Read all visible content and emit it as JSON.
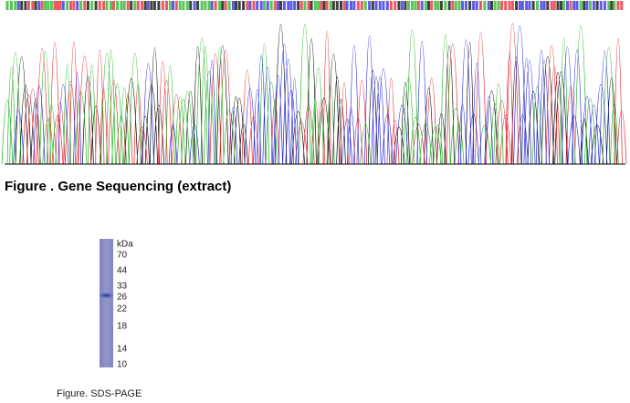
{
  "sequencing": {
    "caption": "Figure . Gene Sequencing (extract)"
  },
  "sds_page": {
    "unit": "kDa",
    "markers": [
      "70",
      "44",
      "33",
      "26",
      "22",
      "18",
      "14",
      "10"
    ],
    "caption": "Figure. SDS-PAGE"
  }
}
